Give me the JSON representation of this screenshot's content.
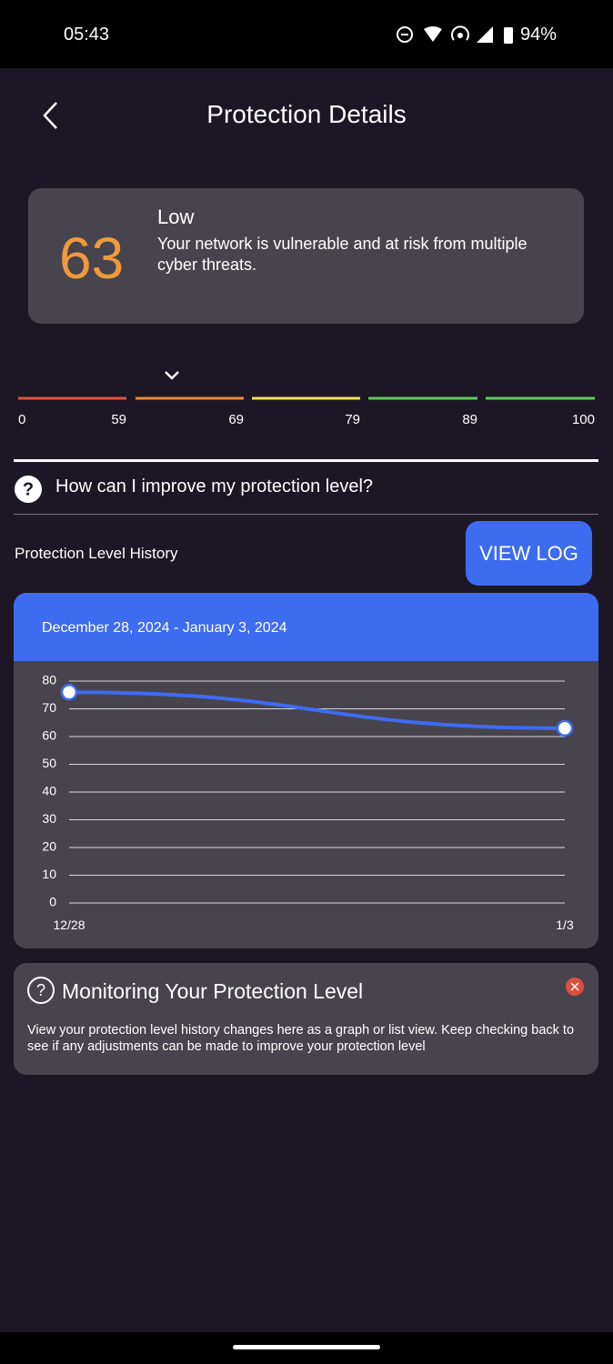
{
  "status_bar": {
    "time": "05:43",
    "battery": "94%"
  },
  "header": {
    "title": "Protection Details"
  },
  "score": {
    "value": 63,
    "level": "Low",
    "description": "Your network is vulnerable and at risk from multiple cyber threats."
  },
  "scale": {
    "labels": [
      0,
      59,
      69,
      79,
      89,
      100
    ],
    "colors": [
      "#e0533f",
      "#ef8a3a",
      "#ece15a",
      "#5ec95a",
      "#5ec95a"
    ]
  },
  "help_link": "How can I improve my protection level?",
  "history": {
    "title": "Protection Level History",
    "button": "VIEW LOG"
  },
  "chart_data": {
    "type": "line",
    "subtitle": "December 28, 2024 - January 3, 2024",
    "categories": [
      "12/28",
      "1/3"
    ],
    "values": [
      76,
      63
    ],
    "color": "#3d6cf0",
    "ylim": [
      0,
      80
    ],
    "yticks": [
      0,
      10,
      20,
      30,
      40,
      50,
      60,
      70,
      80
    ],
    "grid": true
  },
  "tip": {
    "title": "Monitoring Your Protection Level",
    "body": "View your protection level history changes here as a graph or list view. Keep checking back to see if any adjustments can be made to improve your protection level"
  }
}
